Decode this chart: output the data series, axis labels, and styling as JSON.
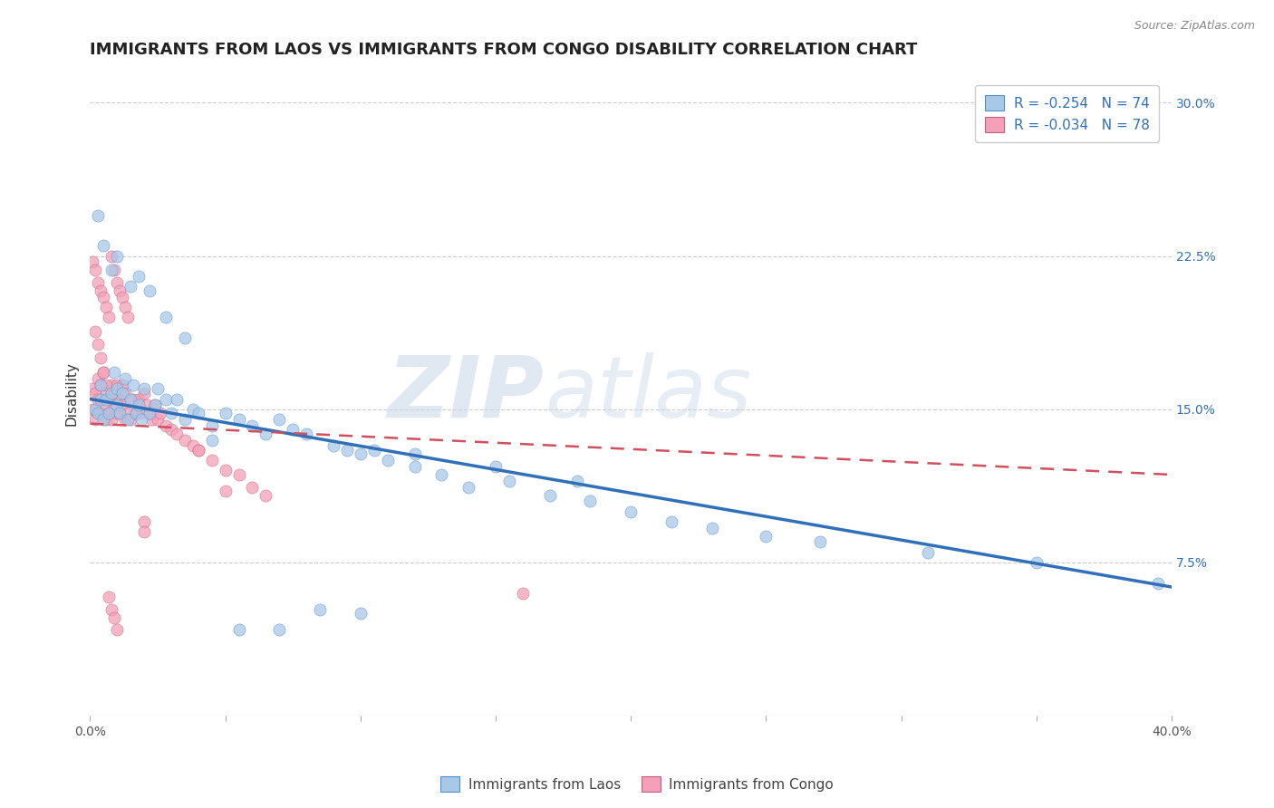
{
  "title": "IMMIGRANTS FROM LAOS VS IMMIGRANTS FROM CONGO DISABILITY CORRELATION CHART",
  "source": "Source: ZipAtlas.com",
  "xlabel": "",
  "ylabel": "Disability",
  "xlim": [
    0.0,
    0.4
  ],
  "ylim": [
    0.0,
    0.315
  ],
  "xticks": [
    0.0,
    0.05,
    0.1,
    0.15,
    0.2,
    0.25,
    0.3,
    0.35,
    0.4
  ],
  "xticklabels": [
    "0.0%",
    "",
    "",
    "",
    "",
    "",
    "",
    "",
    "40.0%"
  ],
  "yticks": [
    0.0,
    0.075,
    0.15,
    0.225,
    0.3
  ],
  "yticklabels": [
    "",
    "7.5%",
    "15.0%",
    "22.5%",
    "30.0%"
  ],
  "legend1_R": "-0.254",
  "legend1_N": "74",
  "legend2_R": "-0.034",
  "legend2_N": "78",
  "laos_color": "#a8c8e8",
  "congo_color": "#f4a0b8",
  "laos_line_color": "#3070b8",
  "congo_line_color": "#d05060",
  "watermark_zip": "ZIP",
  "watermark_atlas": "atlas",
  "background_color": "#ffffff",
  "grid_color": "#cccccc",
  "laos_trend_x0": 0.0,
  "laos_trend_y0": 0.155,
  "laos_trend_x1": 0.4,
  "laos_trend_y1": 0.063,
  "congo_trend_x0": 0.0,
  "congo_trend_y0": 0.143,
  "congo_trend_x1": 0.4,
  "congo_trend_y1": 0.118,
  "laos_x": [
    0.002,
    0.003,
    0.004,
    0.004,
    0.005,
    0.006,
    0.007,
    0.008,
    0.009,
    0.01,
    0.01,
    0.011,
    0.012,
    0.013,
    0.014,
    0.015,
    0.016,
    0.017,
    0.018,
    0.019,
    0.02,
    0.022,
    0.024,
    0.025,
    0.028,
    0.03,
    0.032,
    0.035,
    0.038,
    0.04,
    0.045,
    0.05,
    0.055,
    0.06,
    0.065,
    0.07,
    0.075,
    0.08,
    0.09,
    0.095,
    0.1,
    0.105,
    0.11,
    0.12,
    0.13,
    0.14,
    0.155,
    0.17,
    0.185,
    0.2,
    0.215,
    0.23,
    0.25,
    0.27,
    0.31,
    0.35,
    0.395,
    0.003,
    0.005,
    0.008,
    0.01,
    0.015,
    0.018,
    0.022,
    0.028,
    0.035,
    0.045,
    0.055,
    0.07,
    0.085,
    0.1,
    0.12,
    0.15,
    0.18
  ],
  "laos_y": [
    0.15,
    0.148,
    0.155,
    0.162,
    0.145,
    0.155,
    0.148,
    0.158,
    0.168,
    0.152,
    0.16,
    0.148,
    0.158,
    0.165,
    0.145,
    0.155,
    0.162,
    0.148,
    0.152,
    0.145,
    0.16,
    0.148,
    0.152,
    0.16,
    0.155,
    0.148,
    0.155,
    0.145,
    0.15,
    0.148,
    0.142,
    0.148,
    0.145,
    0.142,
    0.138,
    0.145,
    0.14,
    0.138,
    0.132,
    0.13,
    0.128,
    0.13,
    0.125,
    0.122,
    0.118,
    0.112,
    0.115,
    0.108,
    0.105,
    0.1,
    0.095,
    0.092,
    0.088,
    0.085,
    0.08,
    0.075,
    0.065,
    0.245,
    0.23,
    0.218,
    0.225,
    0.21,
    0.215,
    0.208,
    0.195,
    0.185,
    0.135,
    0.042,
    0.042,
    0.052,
    0.05,
    0.128,
    0.122,
    0.115
  ],
  "congo_x": [
    0.001,
    0.001,
    0.002,
    0.002,
    0.003,
    0.003,
    0.004,
    0.004,
    0.005,
    0.005,
    0.006,
    0.006,
    0.007,
    0.007,
    0.008,
    0.008,
    0.009,
    0.009,
    0.01,
    0.01,
    0.011,
    0.011,
    0.012,
    0.012,
    0.013,
    0.013,
    0.014,
    0.015,
    0.016,
    0.017,
    0.018,
    0.019,
    0.02,
    0.021,
    0.022,
    0.023,
    0.024,
    0.025,
    0.026,
    0.028,
    0.03,
    0.032,
    0.035,
    0.038,
    0.04,
    0.045,
    0.05,
    0.055,
    0.06,
    0.065,
    0.001,
    0.002,
    0.003,
    0.004,
    0.005,
    0.006,
    0.007,
    0.008,
    0.009,
    0.01,
    0.011,
    0.012,
    0.013,
    0.014,
    0.002,
    0.003,
    0.004,
    0.005,
    0.006,
    0.007,
    0.008,
    0.009,
    0.01,
    0.04,
    0.16,
    0.02,
    0.02,
    0.05
  ],
  "congo_y": [
    0.15,
    0.16,
    0.145,
    0.158,
    0.155,
    0.165,
    0.148,
    0.162,
    0.152,
    0.168,
    0.145,
    0.158,
    0.155,
    0.148,
    0.162,
    0.145,
    0.158,
    0.15,
    0.148,
    0.162,
    0.155,
    0.148,
    0.152,
    0.162,
    0.145,
    0.158,
    0.148,
    0.145,
    0.155,
    0.148,
    0.155,
    0.148,
    0.158,
    0.152,
    0.148,
    0.145,
    0.152,
    0.145,
    0.148,
    0.142,
    0.14,
    0.138,
    0.135,
    0.132,
    0.13,
    0.125,
    0.12,
    0.118,
    0.112,
    0.108,
    0.222,
    0.218,
    0.212,
    0.208,
    0.205,
    0.2,
    0.195,
    0.225,
    0.218,
    0.212,
    0.208,
    0.205,
    0.2,
    0.195,
    0.188,
    0.182,
    0.175,
    0.168,
    0.162,
    0.058,
    0.052,
    0.048,
    0.042,
    0.13,
    0.06,
    0.095,
    0.09,
    0.11
  ]
}
